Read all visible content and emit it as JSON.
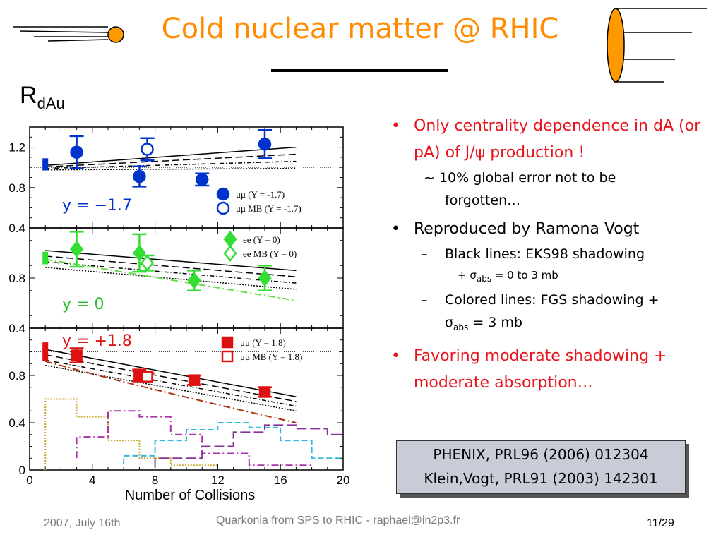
{
  "slide": {
    "title": "Cold nuclear matter @ RHIC",
    "ylabel_main": "R",
    "ylabel_sub": "dAu"
  },
  "bullets": {
    "b1": "Only centrality dependence in dA (or pA) of J/ψ production !",
    "b1_note_a": "~ 10% global error not to be",
    "b1_note_b": "forgotten…",
    "b2": "Reproduced by Ramona Vogt",
    "b2_s1": "Black lines: EKS98 shadowing",
    "b2_s1a_pre": "+ σ",
    "b2_s1a_sub": "abs",
    "b2_s1a_post": " = 0 to 3 mb",
    "b2_s2_a": "Colored lines: FGS shadowing +",
    "b2_s2_b_pre": "σ",
    "b2_s2_b_sub": "abs",
    "b2_s2_b_post": " = 3 mb",
    "b3": "Favoring moderate shadowing + moderate absorption…"
  },
  "refbox": {
    "line1": "PHENIX, PRL96 (2006) 012304",
    "line2": "Klein,Vogt, PRL91 (2003) 142301"
  },
  "footer": {
    "date": "2007, July 16th",
    "center": "Quarkonia from SPS to RHIC - raphael@in2p3.fr",
    "page": "11/29"
  },
  "colors": {
    "title": "#ff8c00",
    "red": "#e8141c",
    "blue": "#0033cc",
    "green": "#33dd33",
    "darkred": "#dd1111"
  },
  "chart_data": [
    {
      "type": "scatter",
      "panel": "y = -1.7",
      "label": "y = −1.7",
      "ylim": [
        0.4,
        1.4
      ],
      "xlim": [
        0,
        20
      ],
      "yticks": [
        "1.2",
        "0.8",
        "0.4"
      ],
      "legend": [
        "μμ (Y = -1.7)",
        "μμ MB (Y = -1.7)"
      ],
      "series": [
        {
          "name": "μμ (Y = -1.7)",
          "filled": true,
          "x": [
            3,
            7,
            11,
            15
          ],
          "y": [
            1.15,
            0.91,
            0.88,
            1.23
          ],
          "err": [
            0.16,
            0.1,
            0.06,
            0.14
          ]
        },
        {
          "name": "μμ MB (Y = -1.7)",
          "filled": false,
          "x": [
            7.5
          ],
          "y": [
            1.18
          ],
          "err": [
            0.11
          ]
        }
      ],
      "global_box": {
        "x": 1,
        "y": 1.03,
        "half": 0.06
      }
    },
    {
      "type": "scatter",
      "panel": "y = 0",
      "label": "y = 0",
      "ylim": [
        0.4,
        1.2
      ],
      "xlim": [
        0,
        20
      ],
      "yticks": [
        "0.8",
        "0.4"
      ],
      "legend": [
        "ee (Y = 0)",
        "ee MB (Y = 0)"
      ],
      "series": [
        {
          "name": "ee (Y = 0)",
          "filled": true,
          "x": [
            3,
            7,
            10.5,
            15
          ],
          "y": [
            1.03,
            1.0,
            0.78,
            0.8
          ],
          "err": [
            0.14,
            0.15,
            0.08,
            0.1
          ]
        },
        {
          "name": "ee MB (Y = 0)",
          "filled": false,
          "x": [
            7.5
          ],
          "y": [
            0.92
          ],
          "err": [
            0.06
          ]
        }
      ],
      "global_box": {
        "x": 1,
        "y": 0.96,
        "half": 0.05
      }
    },
    {
      "type": "scatter",
      "panel": "y = +1.8",
      "label": "y = +1.8",
      "ylim": [
        0,
        1.2
      ],
      "xlim": [
        0,
        20
      ],
      "yticks": [
        "0.8",
        "0.4",
        "0"
      ],
      "xticks": [
        "0",
        "4",
        "8",
        "12",
        "16",
        "20"
      ],
      "xlabel": "Number of Collisions",
      "legend": [
        "μμ (Y = 1.8)",
        "μμ MB (Y = 1.8)"
      ],
      "series": [
        {
          "name": "μμ (Y = 1.8)",
          "filled": true,
          "x": [
            3,
            7,
            10.5,
            15
          ],
          "y": [
            0.97,
            0.8,
            0.76,
            0.66
          ],
          "err": [
            0.06,
            0.05,
            0.04,
            0.04
          ]
        },
        {
          "name": "μμ MB (Y = 1.8)",
          "filled": false,
          "x": [
            7.5
          ],
          "y": [
            0.79
          ],
          "err": [
            0.03
          ]
        }
      ],
      "global_box": {
        "x": 1,
        "y": 1.0,
        "half": 0.08
      }
    }
  ]
}
